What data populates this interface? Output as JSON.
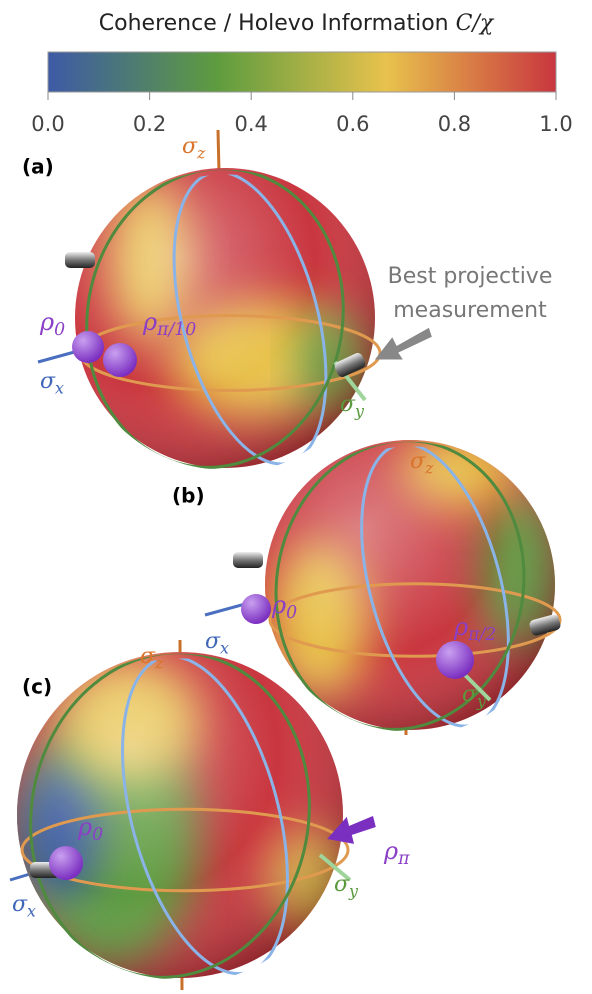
{
  "colorbar": {
    "title": "Coherence / Holevo Information",
    "symbol": "C/χ",
    "colors": [
      "#3d5aa6",
      "#5e9c3f",
      "#e8c24c",
      "#c9363f"
    ],
    "range": [
      0,
      1
    ],
    "ticks": [
      {
        "value": 0,
        "label": "0.0"
      },
      0.2,
      0.4,
      0.6,
      0.8,
      {
        "value": 1,
        "label": "1.0"
      }
    ]
  },
  "panels": [
    {
      "label": "(a)",
      "axes": {
        "z": {
          "base": "σ",
          "sub": "z"
        },
        "x": {
          "base": "σ",
          "sub": "x"
        },
        "y": {
          "base": "σ",
          "sub": "y"
        }
      },
      "states": [
        {
          "base": "ρ",
          "sub": "0"
        },
        {
          "base": "ρ",
          "sub": "π/10"
        }
      ],
      "annotation": [
        "Best projective",
        "measurement"
      ]
    },
    {
      "label": "(b)",
      "axes": {
        "z": {
          "base": "σ",
          "sub": "z"
        },
        "x": {
          "base": "σ",
          "sub": "x"
        },
        "y": {
          "base": "σ",
          "sub": "y"
        }
      },
      "states": [
        {
          "base": "ρ",
          "sub": "0"
        },
        {
          "base": "ρ",
          "sub": "π/2"
        }
      ]
    },
    {
      "label": "(c)",
      "axes": {
        "z": {
          "base": "σ",
          "sub": "z"
        },
        "x": {
          "base": "σ",
          "sub": "x"
        },
        "y": {
          "base": "σ",
          "sub": "y"
        }
      },
      "states": [
        {
          "base": "ρ",
          "sub": "0"
        },
        {
          "base": "ρ",
          "sub": "π"
        }
      ]
    }
  ]
}
